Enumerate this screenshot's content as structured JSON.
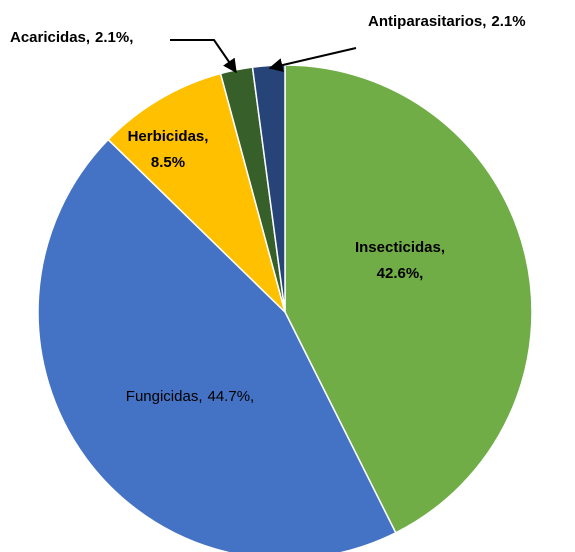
{
  "chart_data": {
    "type": "pie",
    "categories": [
      "Insecticidas,",
      "Fungicidas,",
      "Herbicidas,",
      "Acaricidas,",
      "Antiparasitarios,"
    ],
    "values": [
      42.6,
      44.7,
      8.5,
      2.1,
      2.1
    ],
    "value_labels": [
      "42.6%,",
      "44.7%,",
      "8.5%",
      "2.1%,",
      "2.1%"
    ],
    "colors": [
      "#70ad47",
      "#4472c4",
      "#ffc000",
      "#375f2a",
      "#264478"
    ]
  }
}
